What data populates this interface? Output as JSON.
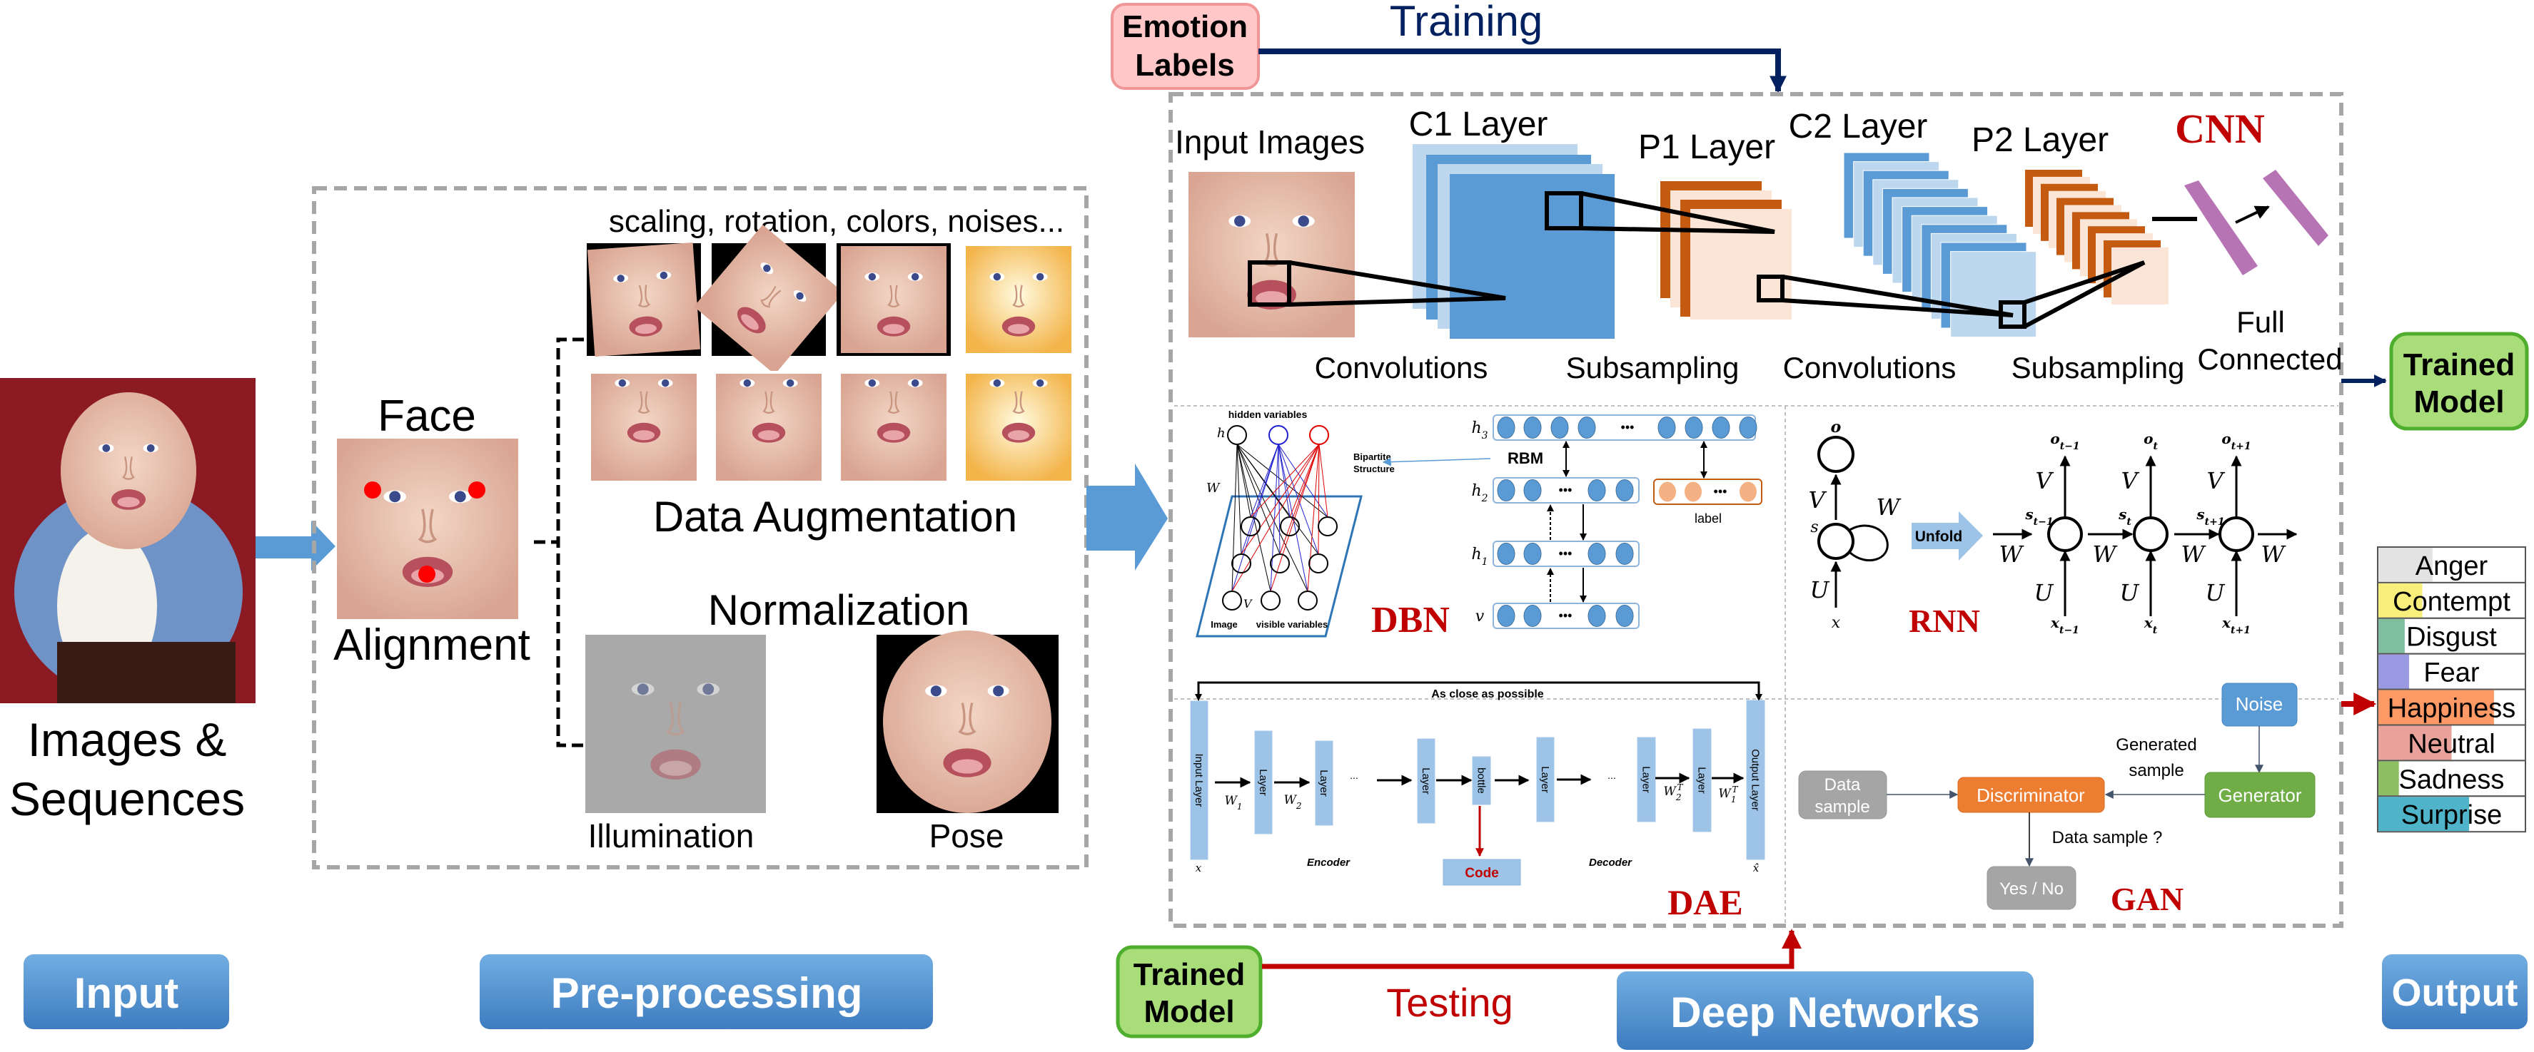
{
  "stages": {
    "input": "Input",
    "preprocessing": "Pre-processing",
    "deep_networks": "Deep Networks",
    "output": "Output"
  },
  "input": {
    "caption_line1": "Images &",
    "caption_line2": "Sequences"
  },
  "preprocessing": {
    "face": "Face",
    "alignment": "Alignment",
    "augmentation_ops": "scaling, rotation, colors, noises...",
    "data_augmentation": "Data Augmentation",
    "normalization": "Normalization",
    "illumination": "Illumination",
    "pose": "Pose"
  },
  "training": {
    "emotion_labels_line1": "Emotion",
    "emotion_labels_line2": "Labels",
    "label": "Training"
  },
  "testing": {
    "trained_model_line1": "Trained",
    "trained_model_line2": "Model",
    "label": "Testing"
  },
  "trained_model": {
    "line1": "Trained",
    "line2": "Model"
  },
  "cnn": {
    "title": "CNN",
    "input_images": "Input Images",
    "c1": "C1 Layer",
    "p1": "P1 Layer",
    "c2": "C2 Layer",
    "p2": "P2 Layer",
    "ops": [
      "Convolutions",
      "Subsampling",
      "Convolutions",
      "Subsampling"
    ],
    "full_line1": "Full",
    "full_line2": "Connected"
  },
  "dbn": {
    "title": "DBN",
    "hidden_variables": "hidden variables",
    "h": "h",
    "w": "W",
    "v": "V",
    "image": "Image",
    "visible_variables": "visible variables",
    "bipartite_line1": "Bipartite",
    "bipartite_line2": "Structure",
    "rbm": "RBM",
    "label": "label",
    "layers": [
      {
        "base": "h",
        "sub": "3"
      },
      {
        "base": "h",
        "sub": "2"
      },
      {
        "base": "h",
        "sub": "1"
      },
      {
        "base": "v",
        "sub": ""
      }
    ],
    "ellipsis": "•••"
  },
  "rnn": {
    "title": "RNN",
    "unfold": "Unfold",
    "o": "o",
    "s": "s",
    "x": "x",
    "V": "V",
    "U": "U",
    "W": "W",
    "steps": [
      {
        "o": "o",
        "o_sub": "t−1",
        "s": "s",
        "s_sub": "t−1",
        "x": "x",
        "x_sub": "t−1"
      },
      {
        "o": "o",
        "o_sub": "t",
        "s": "s",
        "s_sub": "t",
        "x": "x",
        "x_sub": "t"
      },
      {
        "o": "o",
        "o_sub": "t+1",
        "s": "s",
        "s_sub": "t+1",
        "x": "x",
        "x_sub": "t+1"
      }
    ]
  },
  "dae": {
    "title": "DAE",
    "as_close": "As close as possible",
    "input_layer": "Input Layer",
    "output_layer": "Output Layer",
    "layer": "Layer",
    "bottle": "bottle",
    "code": "Code",
    "encoder": "Encoder",
    "decoder": "Decoder",
    "dots": "...",
    "x": "x",
    "x_hat": "x̂",
    "weights": [
      {
        "base": "W",
        "sub": "1",
        "sup": ""
      },
      {
        "base": "W",
        "sub": "2",
        "sup": ""
      },
      {
        "base": "W",
        "sub": "2",
        "sup": "T"
      },
      {
        "base": "W",
        "sub": "1",
        "sup": "T"
      }
    ]
  },
  "gan": {
    "title": "GAN",
    "noise": "Noise",
    "generator": "Generator",
    "discriminator": "Discriminator",
    "data_sample_line1": "Data",
    "data_sample_line2": "sample",
    "generated_line1": "Generated",
    "generated_line2": "sample",
    "question": "Data sample ?",
    "yes_no": "Yes / No"
  },
  "output": {
    "emotions": [
      {
        "label": "Anger",
        "score": 0.37,
        "color": "#e3e3e3"
      },
      {
        "label": "Contempt",
        "score": 0.3,
        "color": "#f8ee7c"
      },
      {
        "label": "Disgust",
        "score": 0.18,
        "color": "#7fbf9f"
      },
      {
        "label": "Fear",
        "score": 0.21,
        "color": "#9a9ae2"
      },
      {
        "label": "Happiness",
        "score": 0.79,
        "color": "#ff9966"
      },
      {
        "label": "Neutral",
        "score": 0.5,
        "color": "#e8a29b"
      },
      {
        "label": "Sadness",
        "score": 0.14,
        "color": "#8dc063"
      },
      {
        "label": "Surprise",
        "score": 0.62,
        "color": "#4fb4ca"
      }
    ],
    "selected": "Happiness"
  },
  "colors": {
    "stage_blue": "#5b9bd5",
    "training_navy": "#002060",
    "testing_red": "#c00000",
    "cnn_blue": "#5b9bd5",
    "cnn_light_blue": "#bdd7ee",
    "cnn_orange": "#c55a11",
    "cnn_light_orange": "#fbe5d6",
    "fc_purple": "#b774b4"
  }
}
